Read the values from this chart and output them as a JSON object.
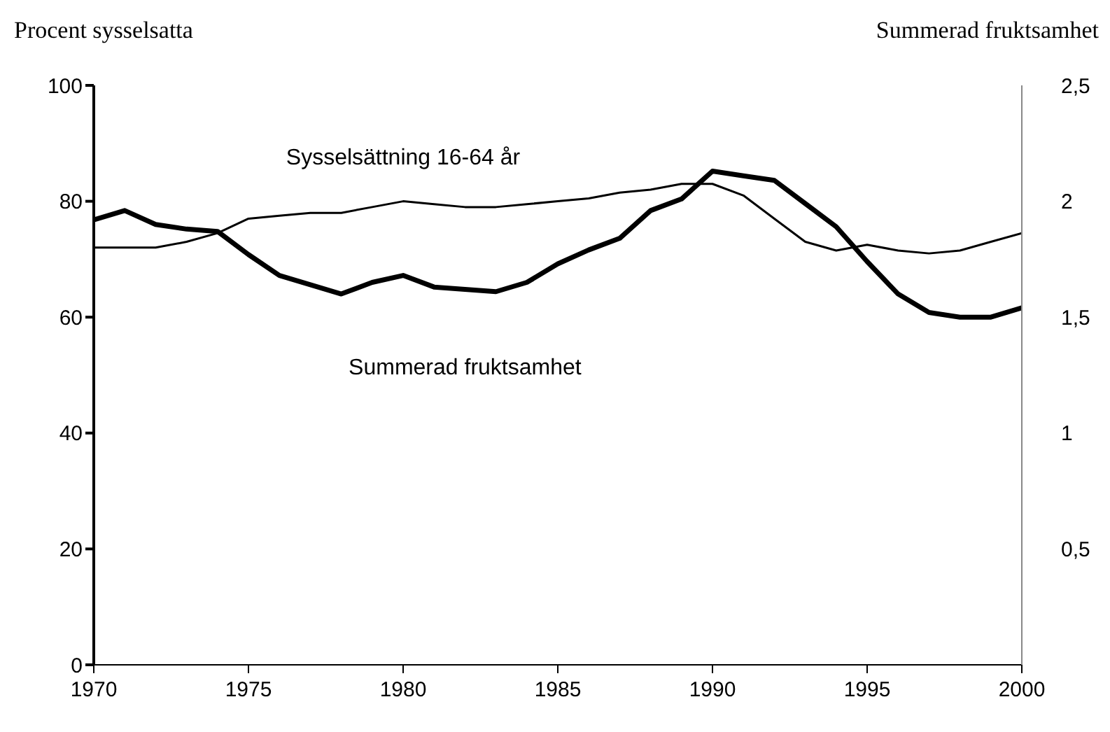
{
  "chart_data": {
    "type": "line",
    "ylabel": "Procent sysselsatta",
    "y2label": "Summerad fruktsamhet",
    "x": [
      1970,
      1971,
      1972,
      1973,
      1974,
      1975,
      1976,
      1977,
      1978,
      1979,
      1980,
      1981,
      1982,
      1983,
      1984,
      1985,
      1986,
      1987,
      1988,
      1989,
      1990,
      1991,
      1992,
      1993,
      1994,
      1995,
      1996,
      1997,
      1998,
      1999,
      2000
    ],
    "series": [
      {
        "name": "Sysselsättning 16-64 år",
        "color": "#000000",
        "values": [
          72,
          72,
          72,
          73,
          74.5,
          77,
          77.5,
          78,
          78,
          79,
          80,
          79.5,
          79,
          79,
          79.5,
          80,
          80.5,
          81.5,
          82,
          83,
          83,
          81,
          77,
          73,
          71.5,
          72.5,
          71.5,
          71,
          71.5,
          73,
          74.5
        ]
      },
      {
        "name": "Summerad fruktsamhet",
        "color": "#000000",
        "axis": "y2",
        "values": [
          1.92,
          1.96,
          1.9,
          1.88,
          1.87,
          1.77,
          1.68,
          1.64,
          1.6,
          1.65,
          1.68,
          1.63,
          1.62,
          1.61,
          1.65,
          1.73,
          1.79,
          1.84,
          1.96,
          2.01,
          2.13,
          2.11,
          2.09,
          1.99,
          1.89,
          1.74,
          1.6,
          1.52,
          1.5,
          1.5,
          1.54
        ]
      }
    ],
    "xlim": [
      1970,
      2000
    ],
    "xticks": [
      1970,
      1975,
      1980,
      1985,
      1990,
      1995,
      2000
    ],
    "ylim": [
      0,
      100
    ],
    "yticks": [
      0,
      20,
      40,
      60,
      80,
      100
    ],
    "y2lim": [
      0,
      2.5
    ],
    "y2ticks": [
      {
        "value": 0.5,
        "label": "0,5"
      },
      {
        "value": 1,
        "label": "1"
      },
      {
        "value": 1.5,
        "label": "1,5"
      },
      {
        "value": 2,
        "label": "2"
      },
      {
        "value": 2.5,
        "label": "2,5"
      }
    ],
    "marker": "none",
    "line_style": "solid"
  }
}
